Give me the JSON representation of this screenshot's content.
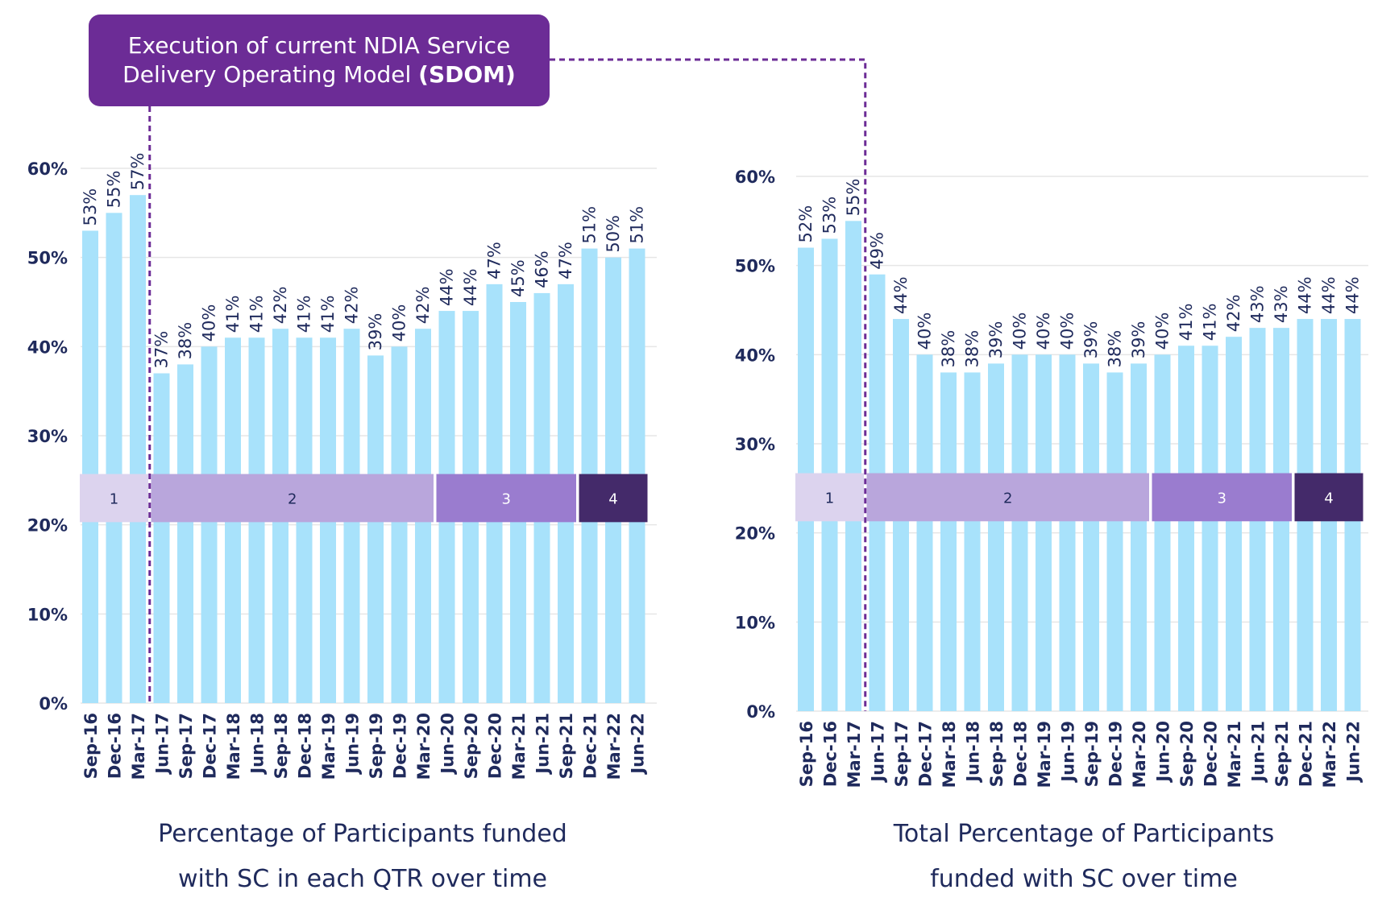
{
  "callout": {
    "line1": "Execution of current NDIA Service",
    "line2_text": "Delivery Operating Model ",
    "line2_bold": "(SDOM)"
  },
  "colors": {
    "bar": "#a8e2fb",
    "axis_text": "#1f2a5c",
    "grid": "#e6e6e6",
    "callout": "#6c2c96",
    "dashed_line": "#6c2c96",
    "phase1": "#dcd3ee",
    "phase2": "#b9a6dc",
    "phase3": "#9a7ccf",
    "phase4": "#442a6a"
  },
  "chart_data": [
    {
      "type": "bar",
      "title": "Percentage of Participants funded with SC in each QTR over time",
      "title_lines": [
        "Percentage of Participants funded",
        "with SC in each QTR over time"
      ],
      "categories": [
        "Sep-16",
        "Dec-16",
        "Mar-17",
        "Jun-17",
        "Sep-17",
        "Dec-17",
        "Mar-18",
        "Jun-18",
        "Sep-18",
        "Dec-18",
        "Mar-19",
        "Jun-19",
        "Sep-19",
        "Dec-19",
        "Mar-20",
        "Jun-20",
        "Sep-20",
        "Dec-20",
        "Mar-21",
        "Jun-21",
        "Sep-21",
        "Dec-21",
        "Mar-22",
        "Jun-22"
      ],
      "values": [
        53,
        55,
        57,
        37,
        38,
        40,
        41,
        41,
        42,
        41,
        41,
        42,
        39,
        40,
        42,
        44,
        44,
        47,
        45,
        46,
        47,
        51,
        50,
        51
      ],
      "data_labels": [
        "53%",
        "55%",
        "57%",
        "37%",
        "38%",
        "40%",
        "41%",
        "41%",
        "42%",
        "41%",
        "41%",
        "42%",
        "39%",
        "40%",
        "42%",
        "44%",
        "44%",
        "47%",
        "45%",
        "46%",
        "47%",
        "51%",
        "50%",
        "51%"
      ],
      "yticks": [
        "0%",
        "10%",
        "20%",
        "30%",
        "40%",
        "50%",
        "60%"
      ],
      "ylim": [
        0,
        60
      ],
      "grid": true,
      "xlabel": "",
      "ylabel": "",
      "phases": [
        {
          "label": "1",
          "start": 0,
          "end": 2
        },
        {
          "label": "2",
          "start": 3,
          "end": 14
        },
        {
          "label": "3",
          "start": 15,
          "end": 20
        },
        {
          "label": "4",
          "start": 21,
          "end": 23
        }
      ],
      "phase_band": [
        20.3,
        25.7
      ],
      "marker_after_index": 2
    },
    {
      "type": "bar",
      "title": "Total Percentage of Participants funded with SC over time",
      "title_lines": [
        "Total Percentage of Participants",
        "funded with SC over time"
      ],
      "categories": [
        "Sep-16",
        "Dec-16",
        "Mar-17",
        "Jun-17",
        "Sep-17",
        "Dec-17",
        "Mar-18",
        "Jun-18",
        "Sep-18",
        "Dec-18",
        "Mar-19",
        "Jun-19",
        "Sep-19",
        "Dec-19",
        "Mar-20",
        "Jun-20",
        "Sep-20",
        "Dec-20",
        "Mar-21",
        "Jun-21",
        "Sep-21",
        "Dec-21",
        "Mar-22",
        "Jun-22"
      ],
      "values": [
        52,
        53,
        55,
        49,
        44,
        40,
        38,
        38,
        39,
        40,
        40,
        40,
        39,
        38,
        39,
        40,
        41,
        41,
        42,
        43,
        43,
        44,
        44,
        44
      ],
      "data_labels": [
        "52%",
        "53%",
        "55%",
        "49%",
        "44%",
        "40%",
        "38%",
        "38%",
        "39%",
        "40%",
        "40%",
        "40%",
        "39%",
        "38%",
        "39%",
        "40%",
        "41%",
        "41%",
        "42%",
        "43%",
        "43%",
        "44%",
        "44%",
        "44%"
      ],
      "yticks": [
        "0%",
        "10%",
        "20%",
        "30%",
        "40%",
        "50%",
        "60%"
      ],
      "ylim": [
        0,
        60
      ],
      "grid": true,
      "xlabel": "",
      "ylabel": "",
      "phases": [
        {
          "label": "1",
          "start": 0,
          "end": 2
        },
        {
          "label": "2",
          "start": 3,
          "end": 14
        },
        {
          "label": "3",
          "start": 15,
          "end": 20
        },
        {
          "label": "4",
          "start": 21,
          "end": 23
        }
      ],
      "phase_band": [
        21.3,
        26.7
      ],
      "marker_after_index": 2
    }
  ]
}
